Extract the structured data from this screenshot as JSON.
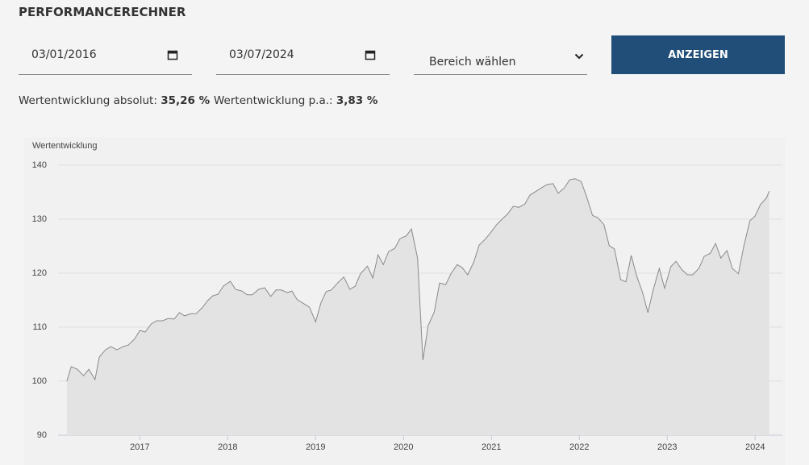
{
  "header": {
    "title": "PERFORMANCERECHNER"
  },
  "form": {
    "start_date": "03/01/2016",
    "end_date": "03/07/2024",
    "range_placeholder": "Bereich wählen",
    "button": "ANZEIGEN"
  },
  "stats": [
    {
      "label": "Wertentwicklung absolut:",
      "value": "35,26 %"
    },
    {
      "label": "Wertentwicklung p.a.:",
      "value": "3,83 %"
    }
  ],
  "chart_data": {
    "type": "area",
    "y_label": "Wertentwicklung",
    "color": "#8a8a8a",
    "fill": "#e3e3e3",
    "xlim": [
      2016.07,
      2024.31
    ],
    "xticks": [
      2017,
      2018,
      2019,
      2020,
      2021,
      2022,
      2023,
      2024
    ],
    "ylim": [
      90,
      140
    ],
    "yticks": [
      90,
      100,
      110,
      120,
      130,
      140
    ],
    "grid": true,
    "x": [
      2016.17,
      2016.22,
      2016.29,
      2016.36,
      2016.42,
      2016.49,
      2016.54,
      2016.61,
      2016.67,
      2016.74,
      2016.81,
      2016.87,
      2016.94,
      2017.0,
      2017.06,
      2017.13,
      2017.19,
      2017.26,
      2017.32,
      2017.39,
      2017.45,
      2017.51,
      2017.58,
      2017.64,
      2017.71,
      2017.77,
      2017.83,
      2017.89,
      2017.95,
      2018.03,
      2018.09,
      2018.16,
      2018.22,
      2018.28,
      2018.35,
      2018.42,
      2018.49,
      2018.55,
      2018.61,
      2018.68,
      2018.73,
      2018.79,
      2018.85,
      2018.93,
      2019.0,
      2019.06,
      2019.12,
      2019.18,
      2019.25,
      2019.32,
      2019.39,
      2019.45,
      2019.51,
      2019.59,
      2019.65,
      2019.71,
      2019.77,
      2019.83,
      2019.9,
      2019.96,
      2020.03,
      2020.09,
      2020.16,
      2020.22,
      2020.28,
      2020.35,
      2020.41,
      2020.48,
      2020.54,
      2020.61,
      2020.67,
      2020.73,
      2020.8,
      2020.86,
      2020.93,
      2020.99,
      2021.06,
      2021.12,
      2021.18,
      2021.25,
      2021.31,
      2021.38,
      2021.44,
      2021.5,
      2021.57,
      2021.63,
      2021.7,
      2021.76,
      2021.83,
      2021.89,
      2021.95,
      2022.02,
      2022.08,
      2022.15,
      2022.21,
      2022.28,
      2022.34,
      2022.4,
      2022.47,
      2022.53,
      2022.59,
      2022.65,
      2022.72,
      2022.78,
      2022.84,
      2022.91,
      2022.97,
      2023.04,
      2023.1,
      2023.17,
      2023.23,
      2023.29,
      2023.36,
      2023.42,
      2023.49,
      2023.55,
      2023.61,
      2023.68,
      2023.74,
      2023.81,
      2023.87,
      2023.94,
      2024.0,
      2024.06,
      2024.13,
      2024.16
    ],
    "values": [
      100,
      102.7,
      102.2,
      101,
      102.2,
      100.3,
      104.5,
      105.8,
      106.4,
      105.8,
      106.4,
      106.7,
      107.8,
      109.4,
      109.1,
      110.6,
      111.2,
      111.2,
      111.6,
      111.5,
      112.7,
      112.1,
      112.5,
      112.5,
      113.6,
      114.9,
      115.8,
      116.1,
      117.6,
      118.5,
      117.0,
      116.7,
      116.0,
      116.0,
      117.0,
      117.3,
      115.7,
      116.9,
      116.9,
      116.4,
      116.7,
      115.1,
      114.5,
      113.7,
      111.0,
      114.5,
      116.6,
      116.9,
      118.2,
      119.3,
      117.0,
      117.6,
      119.9,
      121.3,
      119.1,
      123.4,
      121.6,
      124.0,
      124.6,
      126.4,
      126.9,
      128.2,
      122.8,
      103.9,
      110.3,
      112.8,
      118.2,
      117.9,
      119.9,
      121.6,
      121.0,
      119.7,
      122.1,
      125.2,
      126.3,
      127.5,
      129.0,
      130.0,
      130.9,
      132.4,
      132.2,
      132.8,
      134.5,
      135.1,
      135.8,
      136.4,
      136.6,
      134.8,
      135.8,
      137.3,
      137.5,
      137.0,
      134.3,
      130.7,
      130.3,
      129.0,
      125.1,
      124.5,
      118.8,
      118.4,
      123.3,
      119.6,
      116.4,
      112.7,
      116.9,
      120.9,
      117.2,
      121.2,
      122.2,
      120.6,
      119.7,
      119.7,
      120.9,
      123.1,
      123.7,
      125.5,
      122.8,
      124.2,
      120.9,
      119.9,
      124.9,
      129.7,
      130.6,
      132.7,
      134.0,
      135.2
    ]
  }
}
